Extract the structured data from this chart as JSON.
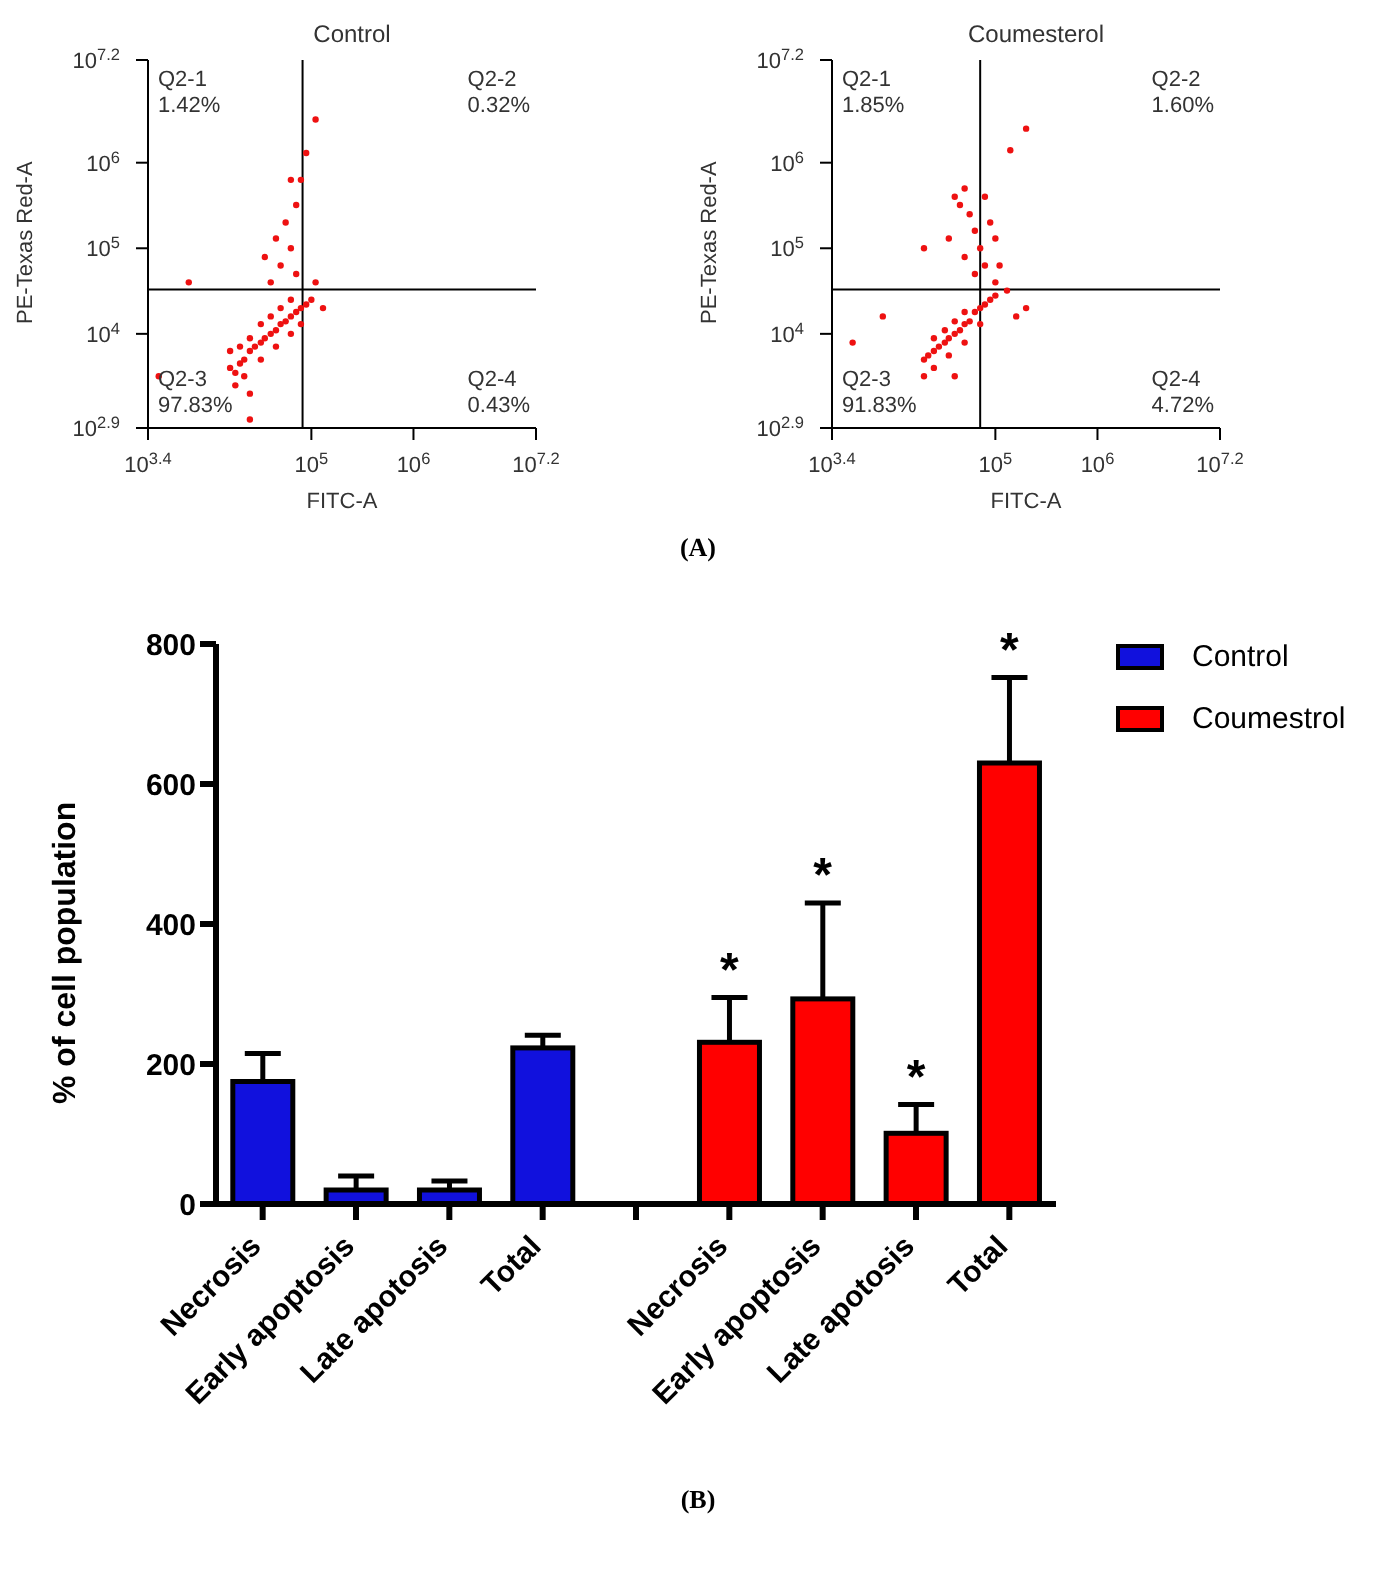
{
  "chart_data": [
    {
      "type": "scatter",
      "title": "Control",
      "xlabel": "FITC-A",
      "ylabel": "PE-Texas Red-A",
      "log": "xy",
      "marker": "circle",
      "grid": false,
      "legend": false,
      "xlim": [
        2512,
        15850000
      ],
      "ylim": [
        794,
        15850000
      ],
      "xticks": [
        {
          "value": 2512,
          "label": "10$^{3.4}$"
        },
        {
          "value": 100000,
          "label": "10$^{5}$"
        },
        {
          "value": 1000000,
          "label": "10$^{6}$"
        },
        {
          "value": 15850000,
          "label": "10$^{7.2}$"
        }
      ],
      "yticks": [
        {
          "value": 794,
          "label": "10$^{2.9}$"
        },
        {
          "value": 10000,
          "label": "10$^{4}$"
        },
        {
          "value": 100000,
          "label": "10$^{5}$"
        },
        {
          "value": 1000000,
          "label": "10$^{6}$"
        },
        {
          "value": 15850000,
          "label": "10$^{7.2}$"
        }
      ],
      "ref_lines": [
        {
          "axis": "x",
          "value": 82000,
          "color": "#000000"
        },
        {
          "axis": "y",
          "value": 33000,
          "color": "#000000"
        }
      ],
      "annotations": [
        "Q2-1\n1.42%",
        "Q2-2\n0.32%",
        "Q2-3\n97.83%",
        "Q2-4\n0.43%",
        "(A)"
      ],
      "series": [
        {
          "color": "#ee1111",
          "x": [
            16000,
            18000,
            20000,
            22000,
            25000,
            28000,
            32000,
            35000,
            40000,
            45000,
            50000,
            56000,
            63000,
            71000,
            79000,
            89000,
            100000,
            20000,
            25000,
            32000,
            40000,
            50000,
            63000,
            22000,
            32000,
            45000,
            63000,
            79000,
            18000,
            25000,
            16000,
            40000,
            50000,
            63000,
            56000,
            71000,
            79000,
            89000,
            110000,
            45000,
            35000,
            71000,
            110000,
            130000,
            63000,
            6300,
            3200,
            25000
          ],
          "values": [
            4000,
            3500,
            4500,
            5000,
            6300,
            7100,
            7900,
            8900,
            10000,
            11000,
            13000,
            14000,
            16000,
            18000,
            20000,
            22000,
            25000,
            7100,
            8900,
            13000,
            16000,
            20000,
            25000,
            3200,
            5000,
            7100,
            10000,
            13000,
            2500,
            2000,
            6300,
            40000,
            63000,
            100000,
            200000,
            320000,
            630000,
            1300000,
            3200000,
            130000,
            79000,
            50000,
            40000,
            20000,
            630000,
            40000,
            3200,
            1000
          ]
        }
      ]
    },
    {
      "type": "scatter",
      "title": "Coumesterol",
      "xlabel": "FITC-A",
      "ylabel": "PE-Texas Red-A",
      "log": "xy",
      "marker": "circle",
      "grid": false,
      "legend": false,
      "xlim": [
        2512,
        15850000
      ],
      "ylim": [
        794,
        15850000
      ],
      "xticks": [
        {
          "value": 2512,
          "label": "10$^{3.4}$"
        },
        {
          "value": 100000,
          "label": "10$^{5}$"
        },
        {
          "value": 1000000,
          "label": "10$^{6}$"
        },
        {
          "value": 15850000,
          "label": "10$^{7.2}$"
        }
      ],
      "yticks": [
        {
          "value": 794,
          "label": "10$^{2.9}$"
        },
        {
          "value": 10000,
          "label": "10$^{4}$"
        },
        {
          "value": 100000,
          "label": "10$^{5}$"
        },
        {
          "value": 1000000,
          "label": "10$^{6}$"
        },
        {
          "value": 15850000,
          "label": "10$^{7.2}$"
        }
      ],
      "ref_lines": [
        {
          "axis": "x",
          "value": 71000,
          "color": "#000000"
        },
        {
          "axis": "y",
          "value": 33000,
          "color": "#000000"
        }
      ],
      "annotations": [
        "Q2-1\n1.85%",
        "Q2-2\n1.60%",
        "Q2-3\n91.83%",
        "Q2-4\n4.72%"
      ],
      "series": [
        {
          "color": "#ee1111",
          "x": [
            20000,
            22000,
            25000,
            28000,
            32000,
            35000,
            40000,
            45000,
            50000,
            56000,
            63000,
            71000,
            79000,
            89000,
            100000,
            130000,
            25000,
            32000,
            40000,
            50000,
            25000,
            35000,
            50000,
            71000,
            20000,
            40000,
            40000,
            45000,
            50000,
            56000,
            63000,
            71000,
            79000,
            89000,
            100000,
            50000,
            63000,
            100000,
            110000,
            35000,
            79000,
            20000,
            140000,
            200000,
            160000,
            200000,
            7900,
            4000
          ],
          "values": [
            5000,
            5600,
            6300,
            7100,
            7900,
            8900,
            10000,
            11000,
            13000,
            14000,
            18000,
            20000,
            22000,
            25000,
            28000,
            32000,
            8900,
            11000,
            14000,
            18000,
            4000,
            5600,
            7900,
            13000,
            3200,
            3200,
            400000,
            320000,
            500000,
            250000,
            160000,
            100000,
            63000,
            200000,
            130000,
            79000,
            50000,
            40000,
            63000,
            130000,
            400000,
            100000,
            1400000,
            2500000,
            16000,
            20000,
            16000,
            7900
          ]
        }
      ]
    },
    {
      "type": "bar",
      "ylabel": "% of cell population",
      "stacked": true,
      "grid": false,
      "legend": "top right",
      "categories": [
        "Necrosis",
        "Early apoptosis",
        "Late apotosis",
        "Total",
        null,
        "Necrosis",
        "Early apoptosis",
        "Late apotosis",
        "Total"
      ],
      "ylim": [
        0,
        800
      ],
      "yticks": [
        0,
        200,
        400,
        600,
        800
      ],
      "annotations": [
        "(B)",
        "*",
        "*",
        "*",
        "*"
      ],
      "series": [
        {
          "name": "Control",
          "color": "#1111dd",
          "values": [
            175,
            20,
            20,
            223,
            null,
            null,
            null,
            null,
            null
          ],
          "errors": [
            40,
            20,
            13,
            18,
            null,
            null,
            null,
            null,
            null
          ]
        },
        {
          "name": "Coumestrol",
          "color": "#ff0000",
          "values": [
            null,
            null,
            null,
            null,
            null,
            231,
            293,
            101,
            630
          ],
          "errors": [
            null,
            null,
            null,
            null,
            null,
            64,
            137,
            41,
            122
          ]
        }
      ]
    }
  ]
}
